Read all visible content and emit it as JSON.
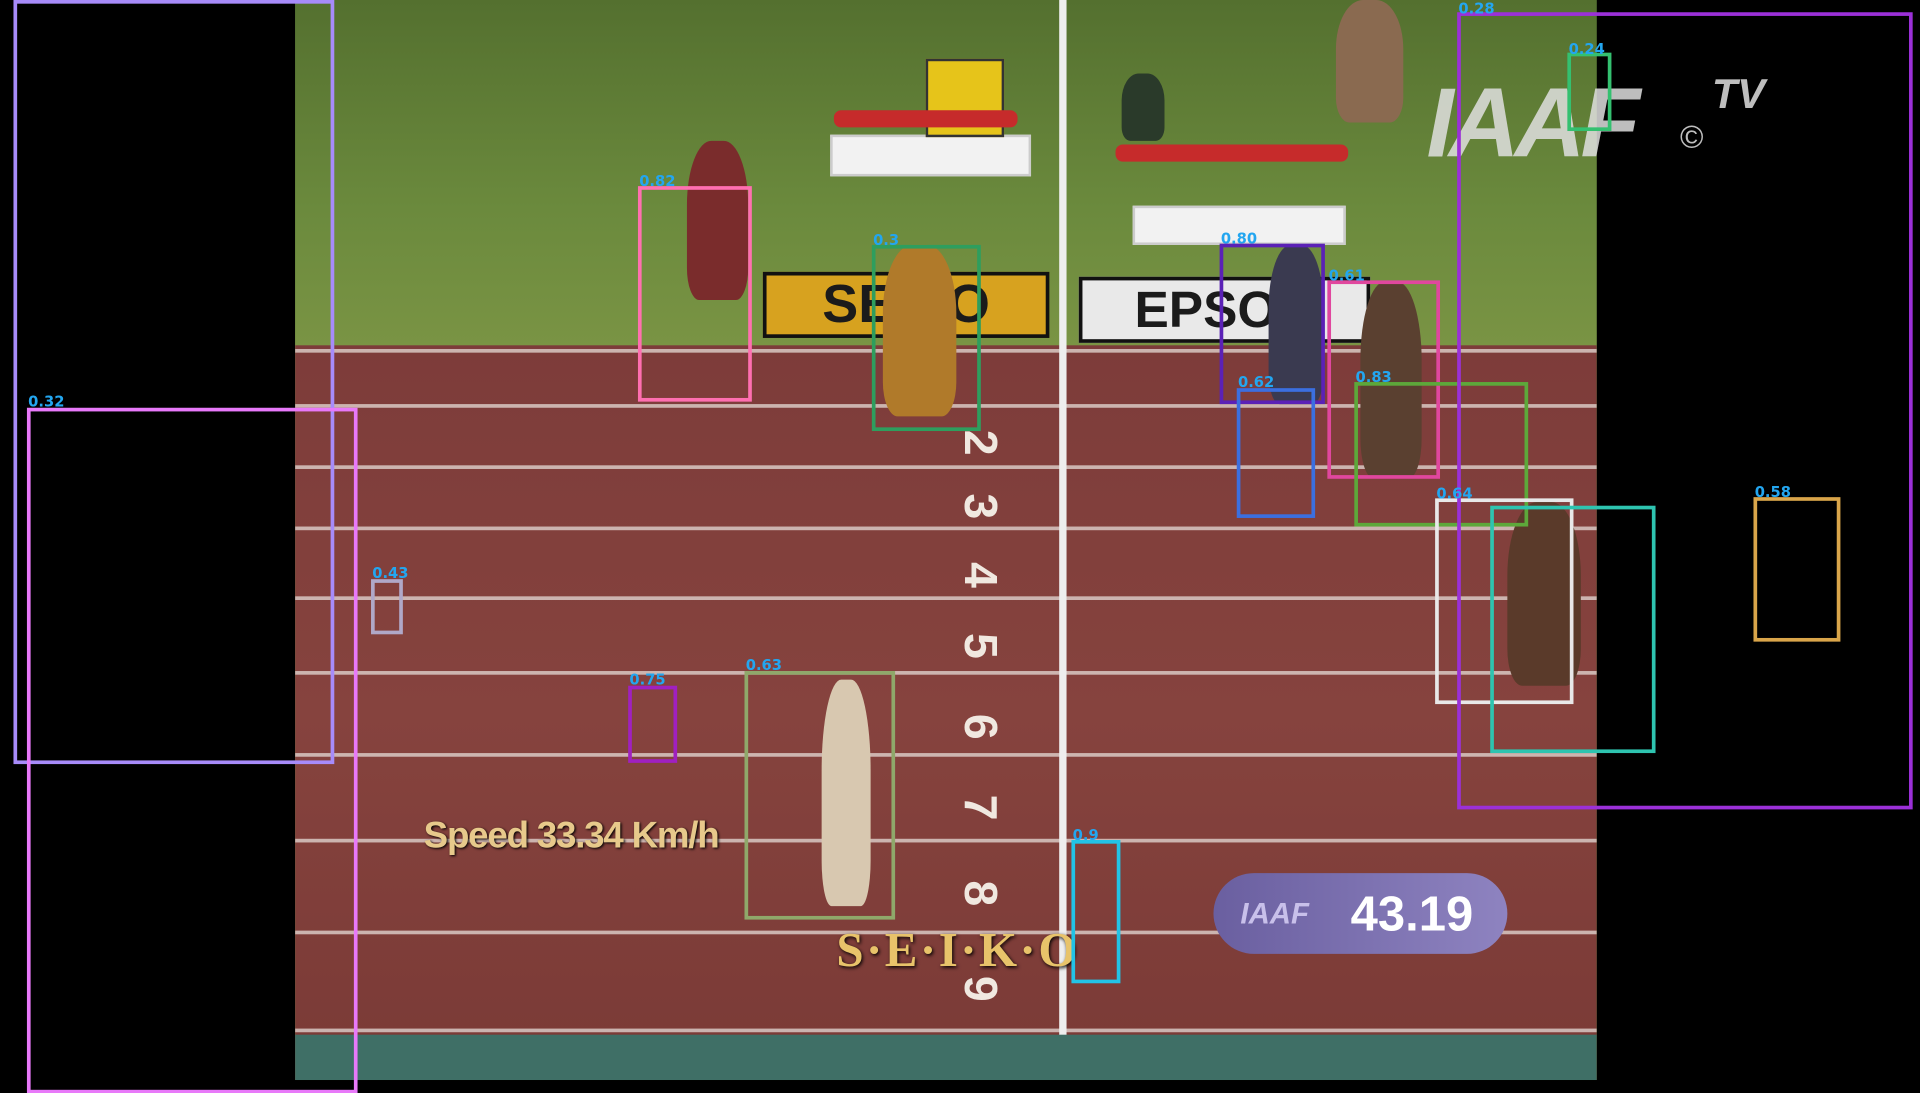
{
  "overlay": {
    "speed": "Speed 33.34 Km/h",
    "timer_label": "IAAF",
    "timer_value": "43.19",
    "logo": "IAAF",
    "logo_tv": "TV",
    "logo_c": "©"
  },
  "sponsors": {
    "seiko_board": "SEIKO",
    "epson_board": "EPSON",
    "seiko_bottom": "S·E·I·K·O"
  },
  "lane_numbers": [
    "2",
    "3",
    "4",
    "5",
    "6",
    "7",
    "8",
    "9"
  ],
  "detections": [
    {
      "label": "0.32",
      "color": "#a78bfa"
    },
    {
      "label": "0.32",
      "color": "#e879f9"
    },
    {
      "label": "0.43",
      "color": "#b0a8c8"
    },
    {
      "label": "0.82",
      "color": "#ff6fb0"
    },
    {
      "label": "0.3",
      "color": "#2e9e5e"
    },
    {
      "label": "0.75",
      "color": "#a020c0"
    },
    {
      "label": "0.63",
      "color": "#8fa86a"
    },
    {
      "label": "0.9",
      "color": "#22c3e6"
    },
    {
      "label": "0.80",
      "color": "#5b21b6"
    },
    {
      "label": "0.62",
      "color": "#3b6fe0"
    },
    {
      "label": "0.61",
      "color": "#e0479e"
    },
    {
      "label": "0.83",
      "color": "#5da83a"
    },
    {
      "label": "0.64",
      "color": "#e8e8e8"
    },
    {
      "label": "",
      "color": "#2ec4b0"
    },
    {
      "label": "0.28",
      "color": "#9b30d8"
    },
    {
      "label": "0.24",
      "color": "#34c070"
    },
    {
      "label": "0.58",
      "color": "#d9a54a"
    }
  ]
}
